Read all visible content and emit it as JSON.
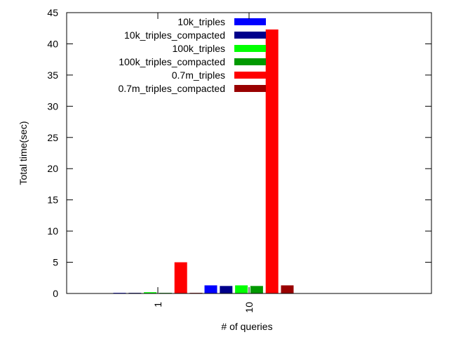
{
  "chart_data": {
    "type": "bar",
    "xlabel": "# of queries",
    "ylabel": "Total time(sec)",
    "ylim": [
      0,
      45
    ],
    "yticks": [
      0,
      5,
      10,
      15,
      20,
      25,
      30,
      35,
      40,
      45
    ],
    "categories": [
      "1",
      "10"
    ],
    "legend_position": "top-right",
    "grid": false,
    "series": [
      {
        "name": "10k_triples",
        "color": "#0000ff",
        "values": [
          0.1,
          1.3
        ]
      },
      {
        "name": "10k_triples_compacted",
        "color": "#00008b",
        "values": [
          0.1,
          1.2
        ]
      },
      {
        "name": "100k_triples",
        "color": "#00ff00",
        "values": [
          0.2,
          1.3
        ]
      },
      {
        "name": "100k_triples_compacted",
        "color": "#009900",
        "values": [
          0.1,
          1.2
        ]
      },
      {
        "name": "0.7m_triples",
        "color": "#ff0000",
        "values": [
          5.0,
          42.3
        ]
      },
      {
        "name": "0.7m_triples_compacted",
        "color": "#990000",
        "values": [
          0.1,
          1.3
        ]
      }
    ]
  }
}
